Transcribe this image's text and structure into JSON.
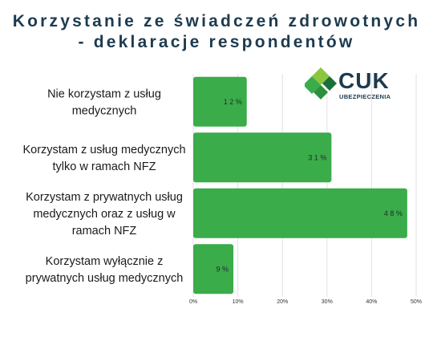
{
  "header": {
    "title_line1": "Korzystanie ze świadczeń zdrowotnych",
    "title_line2": "- deklaracje respondentów"
  },
  "logo": {
    "name": "CUK",
    "subtitle": "UBEZPIECZENIA",
    "icon": "cuk-diamond-logo-icon"
  },
  "colors": {
    "bar": "#3aac4a",
    "title": "#1d3b4f",
    "grid": "#e2e2e2"
  },
  "chart_data": {
    "type": "bar",
    "orientation": "horizontal",
    "categories": [
      [
        "Nie korzystam z usług",
        "medycznych"
      ],
      [
        "Korzystam z usług medycznych",
        "tylko w ramach NFZ"
      ],
      [
        "Korzystam z prywatnych usług",
        "medycznych oraz z usług w",
        "ramach NFZ"
      ],
      [
        "Korzystam wyłącznie z",
        "prywatnych usług medycznych"
      ]
    ],
    "values": [
      12,
      31,
      48,
      9
    ],
    "value_labels": [
      "1 2 %",
      "3 1 %",
      "4 8 %",
      "9 %"
    ],
    "xlim": [
      0,
      50
    ],
    "xticks": [
      0,
      10,
      20,
      30,
      40,
      50
    ],
    "xtick_labels": [
      "0%",
      "10%",
      "20%",
      "30%",
      "40%",
      "50%"
    ],
    "grid": true
  }
}
